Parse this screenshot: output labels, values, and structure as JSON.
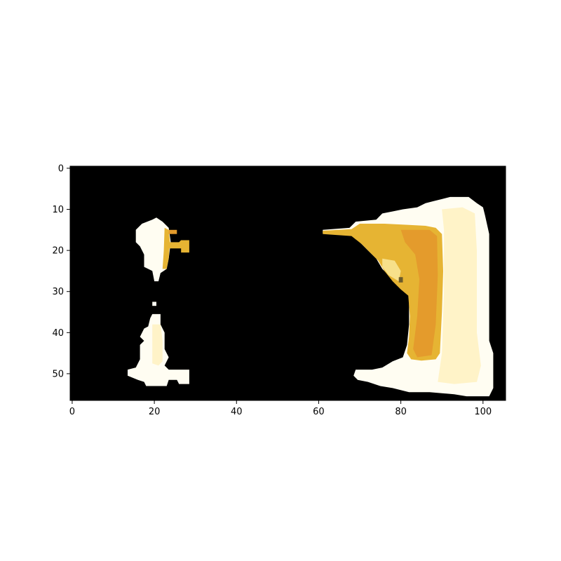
{
  "chart_data": {
    "type": "heatmap",
    "title": "",
    "xlabel": "",
    "ylabel": "",
    "xlim": [
      -0.5,
      105.5
    ],
    "ylim": [
      56.5,
      -0.5
    ],
    "grid": false,
    "x_ticks": [
      0,
      20,
      40,
      60,
      80,
      100
    ],
    "y_ticks": [
      0,
      10,
      20,
      30,
      40,
      50
    ],
    "x_tick_labels": [
      "0",
      "20",
      "40",
      "60",
      "80",
      "100"
    ],
    "y_tick_labels": [
      "0",
      "10",
      "20",
      "30",
      "40",
      "50"
    ],
    "background_color": "#000000",
    "colors": {
      "white": "#fffdf2",
      "cream": "#fff3c8",
      "light_yellow": "#f7e08a",
      "gold": "#e6b433",
      "orange": "#e49b2c",
      "dark_spot": "#6b5a2a"
    },
    "regions": [
      {
        "label": "small-upper-blob",
        "color": "white",
        "polygon": [
          [
            20.5,
            12
          ],
          [
            22,
            13
          ],
          [
            23.5,
            14.5
          ],
          [
            24,
            18
          ],
          [
            23.5,
            22
          ],
          [
            23,
            24.5
          ],
          [
            21.5,
            25.5
          ],
          [
            21,
            27.5
          ],
          [
            20,
            27.5
          ],
          [
            19.5,
            25
          ],
          [
            17.5,
            24
          ],
          [
            17.5,
            21
          ],
          [
            16.5,
            19
          ],
          [
            15.5,
            18
          ],
          [
            15.5,
            15
          ],
          [
            17,
            13.5
          ],
          [
            19.5,
            12.5
          ]
        ]
      },
      {
        "label": "small-upper-gold-stripe",
        "color": "gold",
        "polygon": [
          [
            22.5,
            14.5
          ],
          [
            23.5,
            15
          ],
          [
            23.8,
            18
          ],
          [
            23.5,
            22
          ],
          [
            23,
            24.5
          ],
          [
            22,
            24.5
          ],
          [
            22.3,
            20
          ]
        ]
      },
      {
        "label": "small-upper-orange-tab",
        "color": "orange",
        "polygon": [
          [
            23.5,
            15
          ],
          [
            25.5,
            15
          ],
          [
            25.5,
            16
          ],
          [
            23.5,
            16
          ]
        ]
      },
      {
        "label": "small-upper-right-arm",
        "color": "gold",
        "polygon": [
          [
            23.5,
            18
          ],
          [
            26,
            18
          ],
          [
            26.5,
            17.5
          ],
          [
            28.5,
            17.5
          ],
          [
            28.5,
            20.5
          ],
          [
            26.5,
            20.5
          ],
          [
            26.5,
            19.5
          ],
          [
            23.5,
            19.5
          ]
        ]
      },
      {
        "label": "dot",
        "color": "white",
        "polygon": [
          [
            19.5,
            32.5
          ],
          [
            20.5,
            32.5
          ],
          [
            20.5,
            33.5
          ],
          [
            19.5,
            33.5
          ]
        ]
      },
      {
        "label": "small-lower-blob",
        "color": "white",
        "polygon": [
          [
            19.5,
            35.5
          ],
          [
            21.5,
            35.5
          ],
          [
            21.5,
            38
          ],
          [
            22.5,
            40
          ],
          [
            22.5,
            44
          ],
          [
            23.5,
            46
          ],
          [
            22.5,
            48
          ],
          [
            23.5,
            49
          ],
          [
            28.5,
            49
          ],
          [
            28.5,
            52.5
          ],
          [
            26,
            52.5
          ],
          [
            25.5,
            51.5
          ],
          [
            23.5,
            51.5
          ],
          [
            23,
            53
          ],
          [
            18,
            53
          ],
          [
            17.5,
            52
          ],
          [
            16,
            51.5
          ],
          [
            13.5,
            50.5
          ],
          [
            13.5,
            49
          ],
          [
            15.5,
            48.5
          ],
          [
            16.5,
            46.5
          ],
          [
            16.5,
            43
          ],
          [
            17.5,
            42
          ],
          [
            16.5,
            41
          ],
          [
            17.5,
            39
          ],
          [
            18.5,
            38.5
          ],
          [
            19,
            36.5
          ]
        ]
      },
      {
        "label": "small-lower-cream-core",
        "color": "cream",
        "polygon": [
          [
            19.5,
            38
          ],
          [
            21.5,
            38
          ],
          [
            22,
            42
          ],
          [
            22,
            47
          ],
          [
            21,
            48
          ],
          [
            19.5,
            47.5
          ],
          [
            19.5,
            44
          ]
        ]
      },
      {
        "label": "large-shape-white-outer",
        "color": "white",
        "polygon": [
          [
            92,
            7
          ],
          [
            96.5,
            7
          ],
          [
            98.5,
            8.5
          ],
          [
            100,
            9.5
          ],
          [
            100.5,
            11.5
          ],
          [
            101.5,
            16
          ],
          [
            101.5,
            42
          ],
          [
            102.5,
            45
          ],
          [
            102.5,
            53.5
          ],
          [
            101.5,
            55.5
          ],
          [
            96,
            55.5
          ],
          [
            93,
            55
          ],
          [
            87,
            54.5
          ],
          [
            82,
            54.5
          ],
          [
            78,
            53.5
          ],
          [
            75,
            53
          ],
          [
            72,
            52
          ],
          [
            69.5,
            51.5
          ],
          [
            68.5,
            50.5
          ],
          [
            69,
            49
          ],
          [
            73,
            49
          ],
          [
            75.5,
            48.5
          ],
          [
            78,
            47
          ],
          [
            80.5,
            46
          ],
          [
            81.5,
            43
          ],
          [
            82,
            38
          ],
          [
            82,
            31
          ],
          [
            80.5,
            29
          ],
          [
            78,
            27
          ],
          [
            75.5,
            24.5
          ],
          [
            74,
            22
          ],
          [
            72,
            20
          ],
          [
            70,
            18
          ],
          [
            67.5,
            16
          ],
          [
            61,
            15.8
          ],
          [
            61,
            15
          ],
          [
            67.5,
            14.5
          ],
          [
            69,
            13
          ],
          [
            74,
            12.5
          ],
          [
            75.5,
            11
          ],
          [
            78,
            10.5
          ],
          [
            80.5,
            10
          ],
          [
            84,
            9.5
          ],
          [
            86,
            8.5
          ],
          [
            88,
            8
          ],
          [
            90,
            7.5
          ]
        ]
      },
      {
        "label": "large-shape-cream-band",
        "color": "cream",
        "polygon": [
          [
            90,
            10
          ],
          [
            95,
            9.5
          ],
          [
            98,
            11
          ],
          [
            98.5,
            20
          ],
          [
            98.5,
            40
          ],
          [
            99.5,
            48
          ],
          [
            98.5,
            52
          ],
          [
            93,
            52.5
          ],
          [
            89,
            52
          ],
          [
            90,
            45
          ],
          [
            90.5,
            30
          ],
          [
            90.5,
            15
          ]
        ]
      },
      {
        "label": "large-shape-gold-body",
        "color": "gold",
        "polygon": [
          [
            61,
            15.2
          ],
          [
            68,
            14.8
          ],
          [
            70,
            13.5
          ],
          [
            76,
            13.5
          ],
          [
            82,
            13.8
          ],
          [
            86,
            14
          ],
          [
            88.5,
            14.5
          ],
          [
            90,
            16
          ],
          [
            90.3,
            25
          ],
          [
            90,
            35
          ],
          [
            89.5,
            45
          ],
          [
            88.5,
            46.5
          ],
          [
            85,
            46.8
          ],
          [
            82.5,
            46.5
          ],
          [
            81.5,
            45
          ],
          [
            82,
            41
          ],
          [
            82.2,
            36
          ],
          [
            81.8,
            31
          ],
          [
            80,
            29.5
          ],
          [
            78,
            27.5
          ],
          [
            76,
            25
          ],
          [
            74.5,
            22.5
          ],
          [
            72.5,
            20.5
          ],
          [
            70.5,
            18.5
          ],
          [
            68,
            16.5
          ],
          [
            61,
            16
          ]
        ]
      },
      {
        "label": "large-shape-orange-core",
        "color": "orange",
        "polygon": [
          [
            80,
            15
          ],
          [
            87,
            15
          ],
          [
            88.8,
            16.5
          ],
          [
            89,
            26
          ],
          [
            88.5,
            38
          ],
          [
            87.5,
            45.5
          ],
          [
            84,
            46
          ],
          [
            83,
            44
          ],
          [
            84,
            36
          ],
          [
            84.5,
            27
          ],
          [
            83.5,
            21
          ],
          [
            81,
            18
          ]
        ]
      },
      {
        "label": "large-shape-light-yellow-inner",
        "color": "light_yellow",
        "polygon": [
          [
            75.5,
            22
          ],
          [
            78.5,
            22.5
          ],
          [
            80,
            25
          ],
          [
            79.5,
            27.5
          ],
          [
            77,
            26
          ],
          [
            75.5,
            24
          ]
        ]
      },
      {
        "label": "large-shape-dark-spot",
        "color": "dark_spot",
        "polygon": [
          [
            79.5,
            26.5
          ],
          [
            80.5,
            26.5
          ],
          [
            80.5,
            27.8
          ],
          [
            79.5,
            27.8
          ]
        ]
      }
    ]
  }
}
